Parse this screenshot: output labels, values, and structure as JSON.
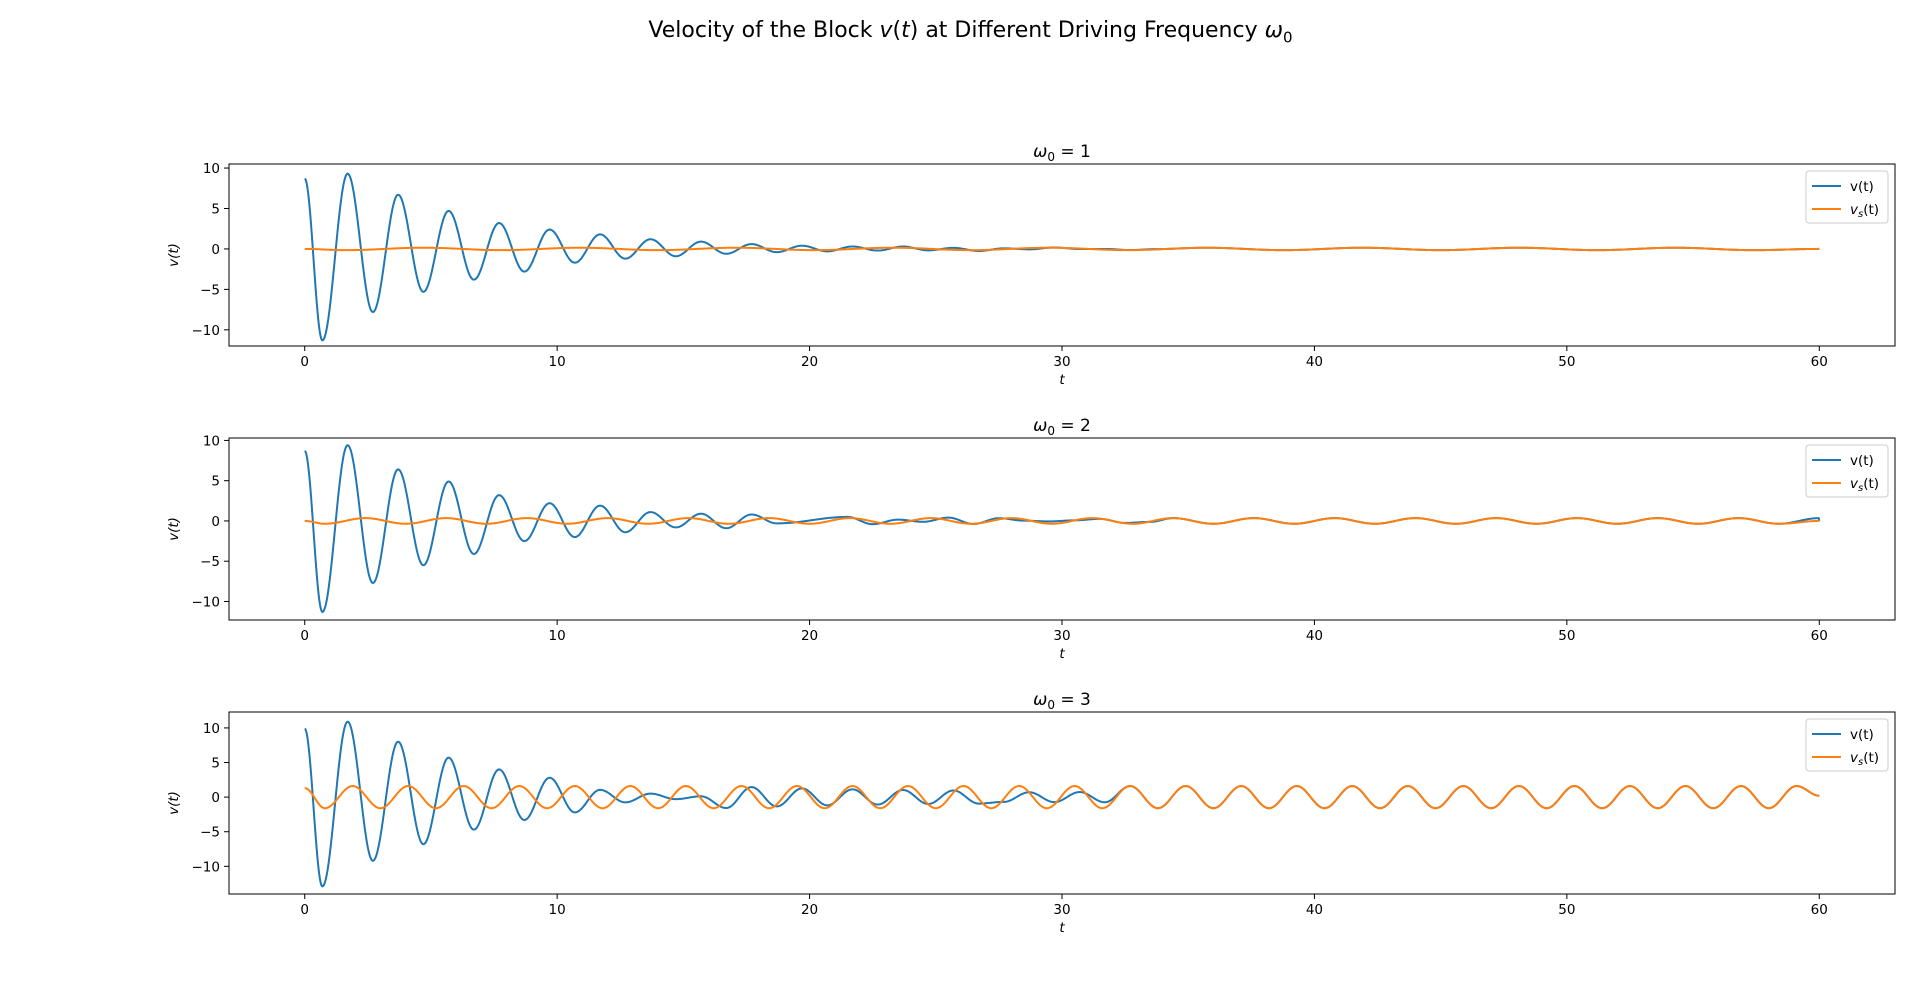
{
  "figure": {
    "title_prefix": "Velocity of the Block ",
    "title_v": "v",
    "title_mid": "(",
    "title_t": "t",
    "title_after": ") at Different Driving Frequency ",
    "title_omega": "ω",
    "title_omega_sub": "0"
  },
  "colors": {
    "v": "#1f77b4",
    "vs": "#ff7f0e"
  },
  "chart_data": [
    {
      "type": "line",
      "title_symbol": "ω",
      "title_sub": "0",
      "title_value": " = 1",
      "xlabel": "t",
      "ylabel": "v(t)",
      "xlim": [
        -3,
        63
      ],
      "ylim": [
        -12,
        10.5
      ],
      "xticks": [
        0,
        10,
        20,
        30,
        40,
        50,
        60
      ],
      "xtick_labels": [
        "0",
        "10",
        "20",
        "30",
        "40",
        "50",
        "60"
      ],
      "yticks": [
        10,
        5,
        0,
        -5,
        -10
      ],
      "ytick_labels": [
        "10",
        "5",
        "0",
        "−5",
        "−10"
      ],
      "grid": false,
      "legend": "top-right",
      "series": [
        {
          "name": "v(t)",
          "key": "v",
          "description": "damped oscillation: t from 0 to 60, period ~2, starts at 8.7, min -11.3 near t=0.7, max 9.3 near t=1.7, decays to ~0 by t=30",
          "points": [
            [
              0,
              8.7
            ],
            [
              0.7,
              -11.3
            ],
            [
              1.7,
              9.3
            ],
            [
              2.7,
              -7.8
            ],
            [
              3.7,
              6.7
            ],
            [
              4.7,
              -5.3
            ],
            [
              5.7,
              4.7
            ],
            [
              6.7,
              -3.8
            ],
            [
              7.7,
              3.2
            ],
            [
              8.7,
              -2.8
            ],
            [
              9.7,
              2.4
            ],
            [
              10.7,
              -1.7
            ],
            [
              11.7,
              1.8
            ],
            [
              12.7,
              -1.2
            ],
            [
              13.7,
              1.2
            ],
            [
              14.7,
              -0.9
            ],
            [
              15.7,
              0.9
            ],
            [
              16.7,
              -0.6
            ],
            [
              17.7,
              0.6
            ],
            [
              18.7,
              -0.4
            ],
            [
              19.7,
              0.4
            ],
            [
              20.7,
              -0.3
            ],
            [
              21.7,
              0.3
            ],
            [
              22.7,
              -0.2
            ],
            [
              23.7,
              0.3
            ],
            [
              60,
              0
            ]
          ]
        },
        {
          "name": "vs(t)",
          "name_base": "v",
          "name_sub": "s",
          "name_rest": "(t)",
          "key": "vs",
          "description": "small steady oscillation, amplitude ~0.15, period ~6.3",
          "points": [
            [
              0,
              0
            ],
            [
              1.6,
              -0.15
            ],
            [
              4.7,
              0.15
            ],
            [
              7.9,
              -0.15
            ],
            [
              11,
              0.15
            ],
            [
              60,
              0
            ]
          ]
        }
      ]
    },
    {
      "type": "line",
      "title_symbol": "ω",
      "title_sub": "0",
      "title_value": " = 2",
      "xlabel": "t",
      "ylabel": "v(t)",
      "xlim": [
        -3,
        63
      ],
      "ylim": [
        -12.3,
        10.3
      ],
      "xticks": [
        0,
        10,
        20,
        30,
        40,
        50,
        60
      ],
      "xtick_labels": [
        "0",
        "10",
        "20",
        "30",
        "40",
        "50",
        "60"
      ],
      "yticks": [
        10,
        5,
        0,
        -5,
        -10
      ],
      "ytick_labels": [
        "10",
        "5",
        "0",
        "−5",
        "−10"
      ],
      "grid": false,
      "legend": "top-right",
      "series": [
        {
          "name": "v(t)",
          "key": "v",
          "description": "damped oscillation that settles onto the steady response around t=22",
          "points": [
            [
              0,
              8.7
            ],
            [
              0.7,
              -11.3
            ],
            [
              1.7,
              9.4
            ],
            [
              2.7,
              -7.7
            ],
            [
              3.7,
              6.4
            ],
            [
              4.7,
              -5.5
            ],
            [
              5.7,
              4.9
            ],
            [
              6.7,
              -4.1
            ],
            [
              7.7,
              3.2
            ],
            [
              8.7,
              -2.5
            ],
            [
              9.7,
              2.2
            ],
            [
              10.7,
              -2.0
            ],
            [
              11.7,
              1.9
            ],
            [
              12.7,
              -1.4
            ],
            [
              13.7,
              1.1
            ],
            [
              14.7,
              -0.8
            ],
            [
              15.7,
              0.9
            ],
            [
              16.7,
              -0.9
            ],
            [
              17.7,
              0.8
            ],
            [
              18.7,
              -0.3
            ],
            [
              21.5,
              0.5
            ],
            [
              22.5,
              -0.4
            ],
            [
              60,
              0
            ]
          ]
        },
        {
          "name": "vs(t)",
          "name_base": "v",
          "name_sub": "s",
          "name_rest": "(t)",
          "key": "vs",
          "description": "steady oscillation, amplitude ~0.35, period ~3.14",
          "points": [
            [
              0,
              0
            ],
            [
              0.8,
              -0.35
            ],
            [
              2.4,
              0.35
            ],
            [
              3.9,
              -0.35
            ],
            [
              60,
              0
            ]
          ]
        }
      ]
    },
    {
      "type": "line",
      "title_symbol": "ω",
      "title_sub": "0",
      "title_value": " = 3",
      "xlabel": "t",
      "ylabel": "v(t)",
      "xlim": [
        -3,
        63
      ],
      "ylim": [
        -14,
        12.3
      ],
      "xticks": [
        0,
        10,
        20,
        30,
        40,
        50,
        60
      ],
      "xtick_labels": [
        "0",
        "10",
        "20",
        "30",
        "40",
        "50",
        "60"
      ],
      "yticks": [
        10,
        5,
        0,
        -5,
        -10
      ],
      "ytick_labels": [
        "10",
        "5",
        "0",
        "−5",
        "−10"
      ],
      "grid": false,
      "legend": "top-right",
      "series": [
        {
          "name": "v(t)",
          "key": "v",
          "description": "damped oscillation converging to the steady response around t=20",
          "points": [
            [
              0,
              9.9
            ],
            [
              0.7,
              -12.9
            ],
            [
              1.7,
              10.9
            ],
            [
              2.7,
              -9.2
            ],
            [
              3.7,
              8.0
            ],
            [
              4.7,
              -6.8
            ],
            [
              5.7,
              5.7
            ],
            [
              6.7,
              -4.7
            ],
            [
              7.7,
              4.0
            ],
            [
              8.7,
              -3.3
            ],
            [
              9.7,
              2.8
            ],
            [
              10.7,
              -2.2
            ],
            [
              60,
              0.2
            ]
          ]
        },
        {
          "name": "vs(t)",
          "name_base": "v",
          "name_sub": "s",
          "name_rest": "(t)",
          "key": "vs",
          "description": "steady oscillation, amplitude ~1.6, period ~2.1",
          "points": [
            [
              0,
              1.3
            ],
            [
              0.8,
              -1.6
            ],
            [
              1.9,
              1.6
            ],
            [
              2.9,
              -1.6
            ],
            [
              60,
              0.2
            ]
          ]
        }
      ]
    }
  ],
  "panel_labels": [
    "panel-1",
    "panel-2",
    "panel-3"
  ]
}
